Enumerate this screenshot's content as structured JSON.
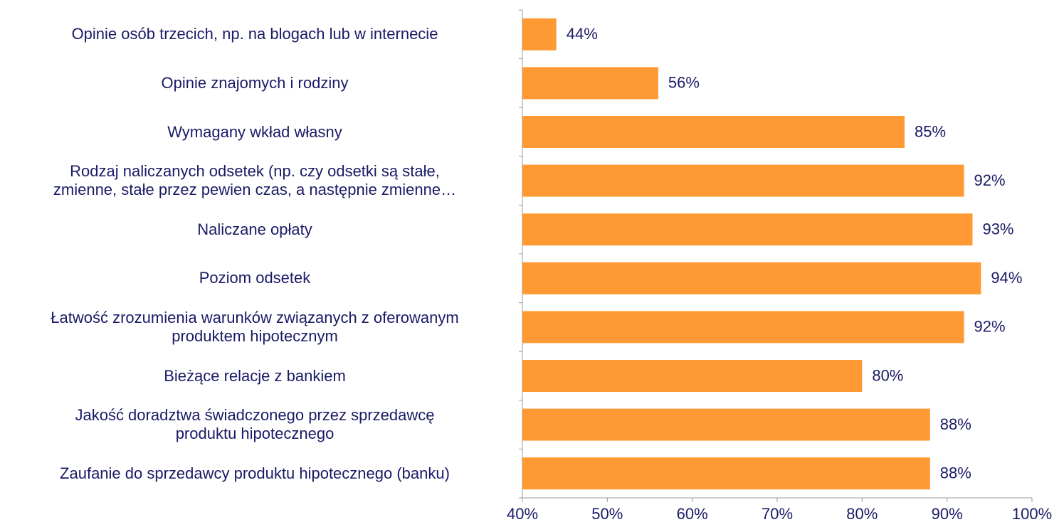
{
  "chart_data": {
    "type": "bar",
    "orientation": "horizontal",
    "categories": [
      "Opinie osób trzecich, np. na blogach lub w internecie",
      "Opinie znajomych i rodziny",
      "Wymagany wkład własny",
      "Rodzaj naliczanych odsetek (np. czy odsetki są stałe,\nzmienne, stałe przez pewien czas, a następnie zmienne…",
      "Naliczane opłaty",
      "Poziom odsetek",
      "Łatwość zrozumienia warunków związanych z oferowanym\nproduktem hipotecznym",
      "Bieżące relacje z bankiem",
      "Jakość doradztwa świadczonego przez sprzedawcę\nproduktu hipotecznego",
      "Zaufanie do sprzedawcy produktu hipotecznego (banku)"
    ],
    "values": [
      44,
      56,
      85,
      92,
      93,
      94,
      92,
      80,
      88,
      88
    ],
    "value_labels": [
      "44%",
      "56%",
      "85%",
      "92%",
      "93%",
      "94%",
      "92%",
      "80%",
      "88%",
      "88%"
    ],
    "color": "#ff9933",
    "xlim": [
      40,
      100
    ],
    "xticks": [
      {
        "value": 40,
        "label": "40%"
      },
      {
        "value": 50,
        "label": "50%"
      },
      {
        "value": 60,
        "label": "60%"
      },
      {
        "value": 70,
        "label": "70%"
      },
      {
        "value": 80,
        "label": "80%"
      },
      {
        "value": 90,
        "label": "90%"
      },
      {
        "value": 100,
        "label": "100%"
      }
    ],
    "grid": false
  }
}
